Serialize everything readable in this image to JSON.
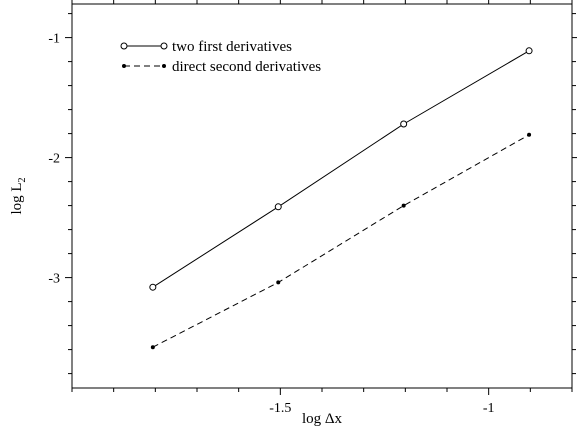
{
  "chart_data": {
    "type": "line",
    "xlabel": "log Δx",
    "ylabel_main": "log L",
    "ylabel_sub": "2",
    "xlim": [
      -2.0,
      -0.8
    ],
    "ylim": [
      -3.92,
      -0.72
    ],
    "xticks": [
      {
        "value": -1.5,
        "label": "-1.5"
      },
      {
        "value": -1.0,
        "label": "-1"
      }
    ],
    "yticks": [
      {
        "value": -1,
        "label": "-1"
      },
      {
        "value": -2,
        "label": "-2"
      },
      {
        "value": -3,
        "label": "-3"
      }
    ],
    "x_minor_step": 0.1,
    "y_minor_step": 0.2,
    "legend_position": "top-left",
    "grid": false,
    "series": [
      {
        "name": "two first derivatives",
        "marker": "open-circle",
        "line": "solid",
        "color": "#000000",
        "x": [
          -1.806,
          -1.505,
          -1.204,
          -0.903
        ],
        "y": [
          -3.08,
          -2.41,
          -1.72,
          -1.11
        ]
      },
      {
        "name": "direct second derivatives",
        "marker": "filled-dot",
        "line": "dashed",
        "color": "#000000",
        "x": [
          -1.806,
          -1.505,
          -1.204,
          -0.903
        ],
        "y": [
          -3.58,
          -3.04,
          -2.4,
          -1.81
        ]
      }
    ]
  }
}
